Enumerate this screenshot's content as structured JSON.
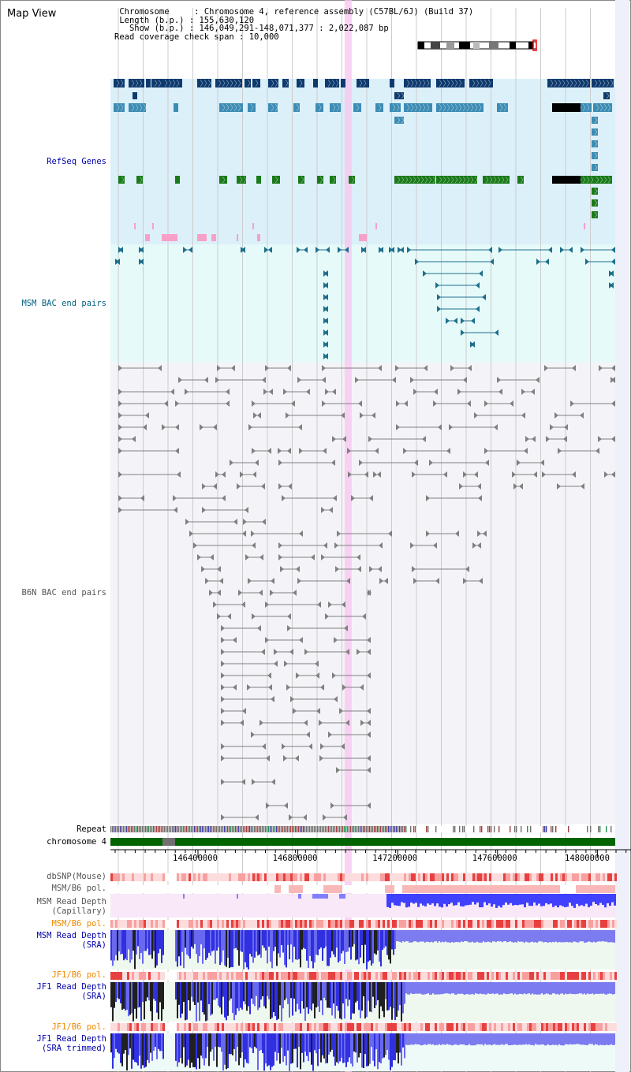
{
  "page": {
    "title": "Map View"
  },
  "info": {
    "chromosome_label": "Chromosome",
    "chromosome_value": "Chromosome 4, reference assembly (C57BL/6J) (Build 37)",
    "length_label": "Length (b.p.)",
    "length_value": "155,630,120",
    "show_label": "Show (b.p.)",
    "show_value": "146,049,291-148,071,377 : 2,022,087 bp",
    "coverage_label": "Read coverage check span",
    "coverage_value": "10,000"
  },
  "tracks": {
    "refseq": "RefSeq Genes",
    "msm_bac": "MSM BAC end pairs",
    "b6n_bac": "B6N BAC end pairs",
    "repeat": "Repeat",
    "chromosome": "chromosome 4",
    "dbsnp": "dbSNP(Mouse)",
    "msm_b6_pol_1": "MSM/B6 pol.",
    "msm_depth_cap_1": "MSM Read Depth",
    "msm_depth_cap_2": "(Capillary)",
    "msm_b6_pol_2": "MSM/B6 pol.",
    "msm_depth_sra_1": "MSM Read Depth",
    "msm_depth_sra_2": "(SRA)",
    "jf1_b6_pol_1": "JF1/B6 pol.",
    "jf1_depth_1": "JF1 Read Depth",
    "jf1_depth_2": "(SRA)",
    "jf1_b6_pol_2": "JF1/B6 pol.",
    "jf1_trim_1": "JF1 Read Depth",
    "jf1_trim_2": "(SRA trimmed)"
  },
  "axis": {
    "ticks": [
      "146400000",
      "146800000",
      "147200000",
      "147600000",
      "148000000"
    ],
    "tick_values": [
      146400000,
      146800000,
      147200000,
      147600000,
      148000000
    ],
    "start": 146049291,
    "end": 148071377
  },
  "highlight": {
    "position": 147000000
  },
  "colors": {
    "refseq_bg": "#dcf0fa",
    "msm_bg": "#e6fafa",
    "grid": "#cccccc",
    "highlight": "#f8c8f0",
    "gene_dark": "#0e3a6e",
    "gene_mid": "#3c8cb4",
    "gene_green": "#1a7a1a",
    "msm_teal": "#1e6e8c",
    "b6n_grey": "#808080",
    "chromosome": "#006400",
    "depth_blue": "#4040ff",
    "depth_black": "#202020"
  }
}
